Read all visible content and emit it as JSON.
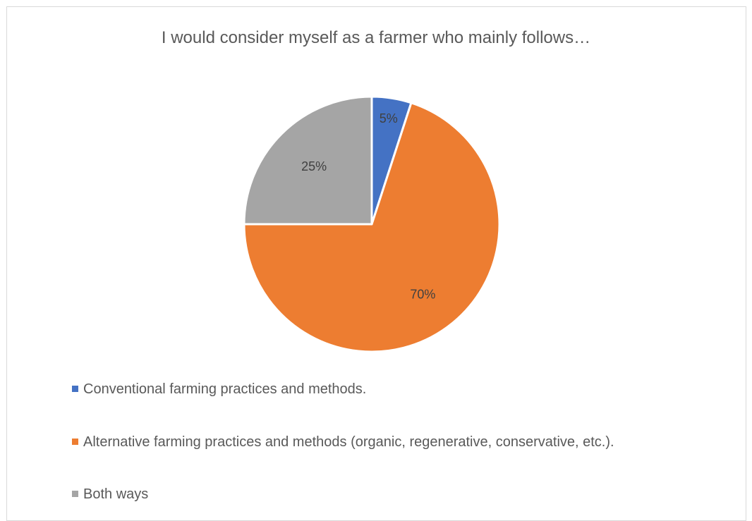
{
  "chart_data": {
    "type": "pie",
    "title": "I would consider myself as a farmer who mainly follows…",
    "categories": [
      "Conventional farming practices and methods.",
      "Alternative farming practices and methods (organic, regenerative, conservative, etc.).",
      "Both ways"
    ],
    "values": [
      5,
      70,
      25
    ],
    "data_labels": [
      "5%",
      "70%",
      "25%"
    ],
    "colors": [
      "#4472c4",
      "#ed7d31",
      "#a5a5a5"
    ],
    "legend_position": "bottom-left"
  }
}
